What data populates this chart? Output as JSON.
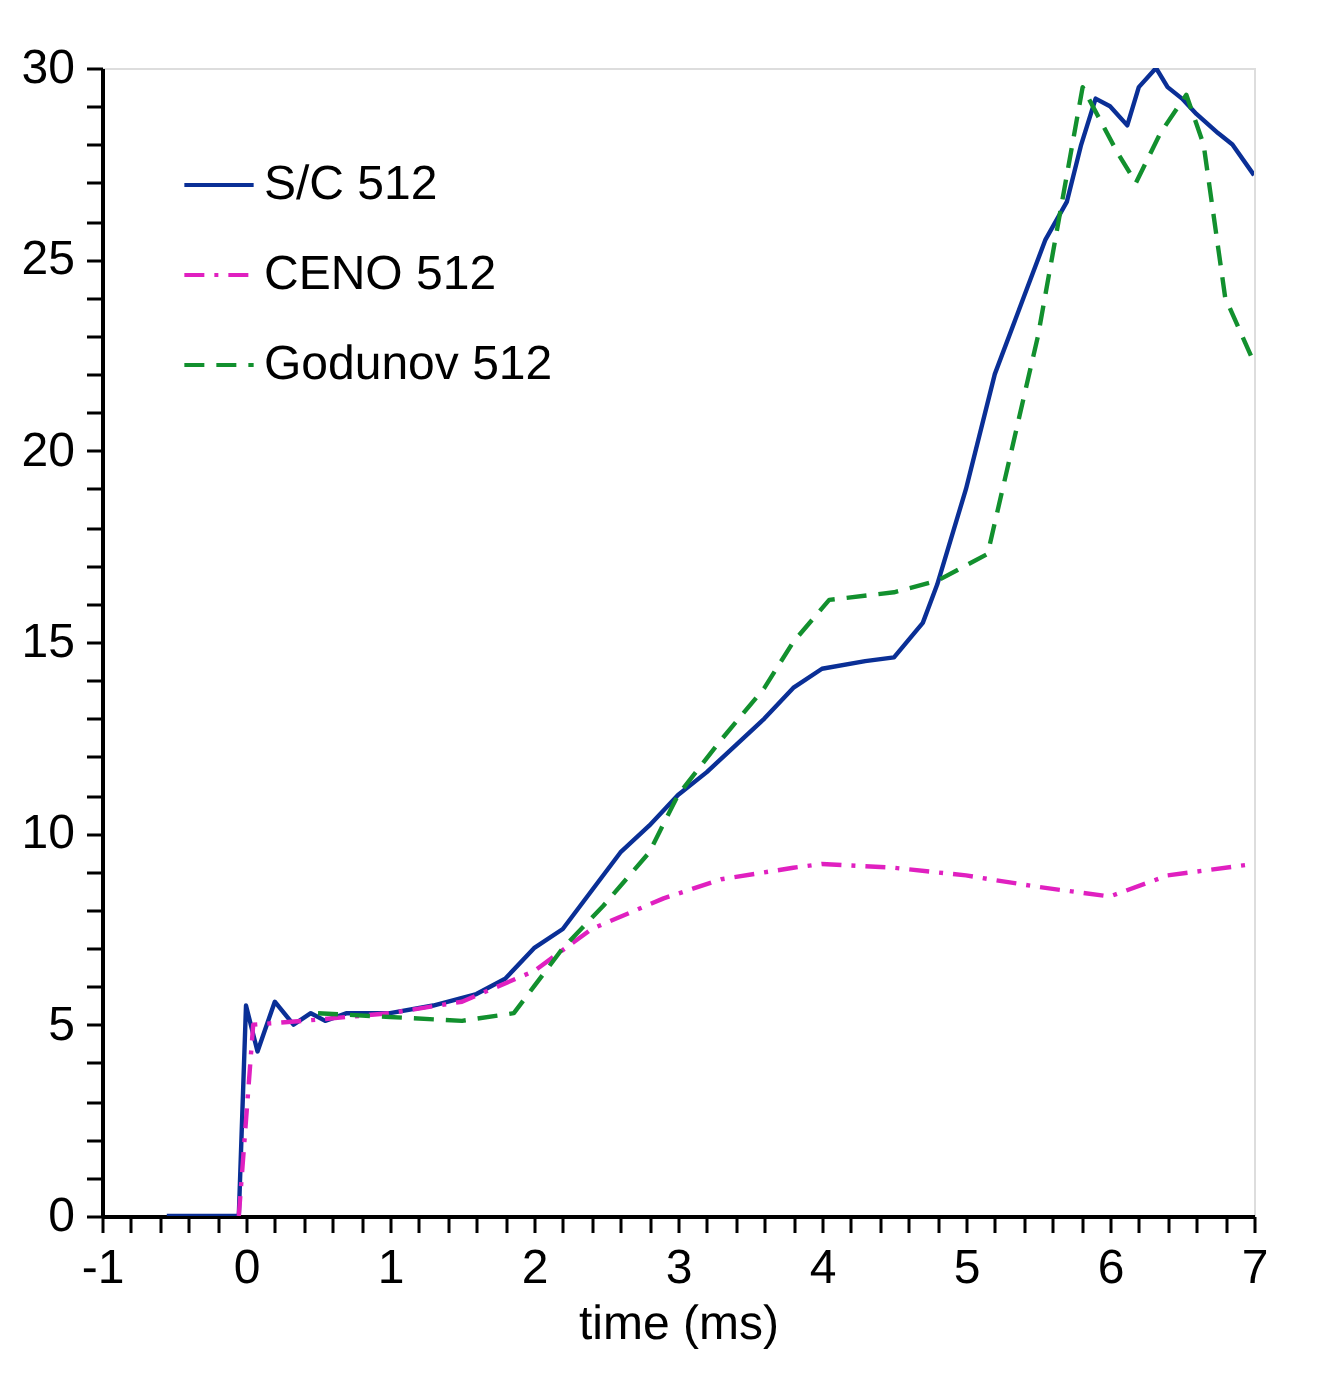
{
  "chart_data": {
    "type": "line",
    "xlabel": "time (ms)",
    "xlim": [
      -1,
      7
    ],
    "ylim": [
      0,
      30
    ],
    "xticks": [
      -1,
      {
        "value": -0.8,
        "label": null
      },
      {
        "value": -0.6,
        "label": null
      },
      {
        "value": -0.4,
        "label": null
      },
      {
        "value": -0.2,
        "label": null
      },
      0,
      {
        "value": 0.2,
        "label": null
      },
      {
        "value": 0.4,
        "label": null
      },
      {
        "value": 0.6,
        "label": null
      },
      {
        "value": 0.8,
        "label": null
      },
      1,
      {
        "value": 1.2,
        "label": null
      },
      {
        "value": 1.4,
        "label": null
      },
      {
        "value": 1.6,
        "label": null
      },
      {
        "value": 1.8,
        "label": null
      },
      2,
      {
        "value": 2.2,
        "label": null
      },
      {
        "value": 2.4,
        "label": null
      },
      {
        "value": 2.6,
        "label": null
      },
      {
        "value": 2.8,
        "label": null
      },
      3,
      {
        "value": 3.2,
        "label": null
      },
      {
        "value": 3.4,
        "label": null
      },
      {
        "value": 3.6,
        "label": null
      },
      {
        "value": 3.8,
        "label": null
      },
      4,
      {
        "value": 4.2,
        "label": null
      },
      {
        "value": 4.4,
        "label": null
      },
      {
        "value": 4.6,
        "label": null
      },
      {
        "value": 4.8,
        "label": null
      },
      5,
      {
        "value": 5.2,
        "label": null
      },
      {
        "value": 5.4,
        "label": null
      },
      {
        "value": 5.6,
        "label": null
      },
      {
        "value": 5.8,
        "label": null
      },
      6,
      {
        "value": 6.2,
        "label": null
      },
      {
        "value": 6.4,
        "label": null
      },
      {
        "value": 6.6,
        "label": null
      },
      {
        "value": 6.8,
        "label": null
      },
      7
    ],
    "yticks": [
      0,
      {
        "value": 1,
        "label": null
      },
      {
        "value": 2,
        "label": null
      },
      {
        "value": 3,
        "label": null
      },
      {
        "value": 4,
        "label": null
      },
      5,
      {
        "value": 6,
        "label": null
      },
      {
        "value": 7,
        "label": null
      },
      {
        "value": 8,
        "label": null
      },
      {
        "value": 9,
        "label": null
      },
      10,
      {
        "value": 11,
        "label": null
      },
      {
        "value": 12,
        "label": null
      },
      {
        "value": 13,
        "label": null
      },
      {
        "value": 14,
        "label": null
      },
      15,
      {
        "value": 16,
        "label": null
      },
      {
        "value": 17,
        "label": null
      },
      {
        "value": 18,
        "label": null
      },
      {
        "value": 19,
        "label": null
      },
      20,
      {
        "value": 21,
        "label": null
      },
      {
        "value": 22,
        "label": null
      },
      {
        "value": 23,
        "label": null
      },
      {
        "value": 24,
        "label": null
      },
      25,
      {
        "value": 26,
        "label": null
      },
      {
        "value": 27,
        "label": null
      },
      {
        "value": 28,
        "label": null
      },
      {
        "value": 29,
        "label": null
      },
      30
    ],
    "grid": false,
    "legend": "top left",
    "marker": "none",
    "series": [
      {
        "name": "S/C 512",
        "color": "#0a2f96",
        "line_style": "solid",
        "x": [
          -0.55,
          -0.05,
          0.0,
          0.08,
          0.2,
          0.33,
          0.45,
          0.55,
          0.7,
          1.0,
          1.3,
          1.6,
          1.8,
          2.0,
          2.2,
          2.4,
          2.6,
          2.8,
          3.0,
          3.2,
          3.4,
          3.6,
          3.8,
          4.0,
          4.3,
          4.5,
          4.7,
          4.8,
          5.0,
          5.2,
          5.4,
          5.55,
          5.7,
          5.8,
          5.9,
          6.0,
          6.12,
          6.2,
          6.32,
          6.4,
          6.5,
          6.6,
          6.75,
          6.85,
          7.0
        ],
        "values": [
          0,
          0,
          5.5,
          4.3,
          5.6,
          5.0,
          5.3,
          5.1,
          5.3,
          5.3,
          5.5,
          5.8,
          6.2,
          7.0,
          7.5,
          8.5,
          9.5,
          10.2,
          11.0,
          11.6,
          12.3,
          13.0,
          13.8,
          14.3,
          14.5,
          14.6,
          15.5,
          16.5,
          19.0,
          22.0,
          24.0,
          25.5,
          26.5,
          28.0,
          29.2,
          29.0,
          28.5,
          29.5,
          30.0,
          29.5,
          29.2,
          28.8,
          28.3,
          28.0,
          27.2
        ]
      },
      {
        "name": "CENO 512",
        "color": "#e020c0",
        "line_style": "dashdot",
        "x": [
          -0.05,
          0.05,
          0.4,
          1.0,
          1.5,
          2.0,
          2.4,
          2.9,
          3.3,
          3.8,
          4.0,
          4.5,
          5.0,
          5.5,
          6.0,
          6.4,
          7.0
        ],
        "values": [
          0,
          5.0,
          5.1,
          5.3,
          5.6,
          6.4,
          7.5,
          8.3,
          8.8,
          9.1,
          9.2,
          9.1,
          8.9,
          8.6,
          8.35,
          8.9,
          9.2
        ]
      },
      {
        "name": "Godunov 512",
        "color": "#12902e",
        "line_style": "dashed",
        "x": [
          0.5,
          1.0,
          1.5,
          1.86,
          2.0,
          2.2,
          2.48,
          2.8,
          3.0,
          3.29,
          3.6,
          3.8,
          4.05,
          4.5,
          4.8,
          5.15,
          5.5,
          5.81,
          6.05,
          6.18,
          6.35,
          6.53,
          6.65,
          6.8,
          7.0
        ],
        "values": [
          5.3,
          5.2,
          5.1,
          5.3,
          6.0,
          7.0,
          8.1,
          9.5,
          11.0,
          12.4,
          13.8,
          15.0,
          16.1,
          16.3,
          16.6,
          17.3,
          23.0,
          29.5,
          27.8,
          27.0,
          28.3,
          29.3,
          28.0,
          24.0,
          22.3
        ]
      }
    ]
  }
}
